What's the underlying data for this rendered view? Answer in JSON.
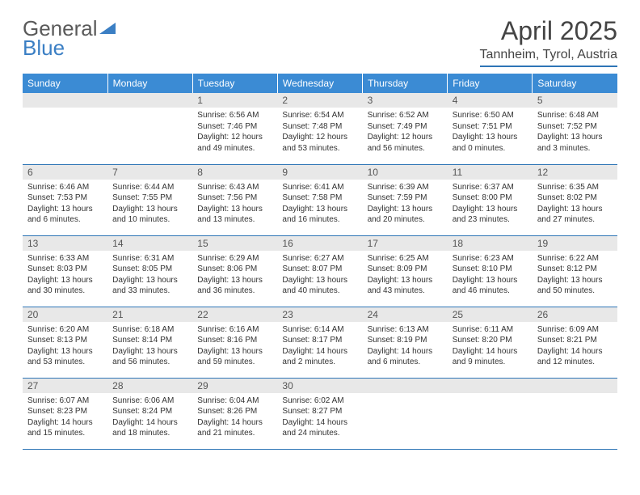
{
  "logo": {
    "text_gray": "General",
    "text_blue": "Blue"
  },
  "title": "April 2025",
  "location": "Tannheim, Tyrol, Austria",
  "colors": {
    "header_bg": "#3b8bd4",
    "header_text": "#ffffff",
    "daynum_bg": "#e8e8e8",
    "border": "#2e75b6",
    "logo_gray": "#5a5a5a",
    "logo_blue": "#3b7fc4"
  },
  "weekdays": [
    "Sunday",
    "Monday",
    "Tuesday",
    "Wednesday",
    "Thursday",
    "Friday",
    "Saturday"
  ],
  "weeks": [
    [
      {
        "empty": true
      },
      {
        "empty": true
      },
      {
        "num": "1",
        "sunrise": "Sunrise: 6:56 AM",
        "sunset": "Sunset: 7:46 PM",
        "daylight": "Daylight: 12 hours and 49 minutes."
      },
      {
        "num": "2",
        "sunrise": "Sunrise: 6:54 AM",
        "sunset": "Sunset: 7:48 PM",
        "daylight": "Daylight: 12 hours and 53 minutes."
      },
      {
        "num": "3",
        "sunrise": "Sunrise: 6:52 AM",
        "sunset": "Sunset: 7:49 PM",
        "daylight": "Daylight: 12 hours and 56 minutes."
      },
      {
        "num": "4",
        "sunrise": "Sunrise: 6:50 AM",
        "sunset": "Sunset: 7:51 PM",
        "daylight": "Daylight: 13 hours and 0 minutes."
      },
      {
        "num": "5",
        "sunrise": "Sunrise: 6:48 AM",
        "sunset": "Sunset: 7:52 PM",
        "daylight": "Daylight: 13 hours and 3 minutes."
      }
    ],
    [
      {
        "num": "6",
        "sunrise": "Sunrise: 6:46 AM",
        "sunset": "Sunset: 7:53 PM",
        "daylight": "Daylight: 13 hours and 6 minutes."
      },
      {
        "num": "7",
        "sunrise": "Sunrise: 6:44 AM",
        "sunset": "Sunset: 7:55 PM",
        "daylight": "Daylight: 13 hours and 10 minutes."
      },
      {
        "num": "8",
        "sunrise": "Sunrise: 6:43 AM",
        "sunset": "Sunset: 7:56 PM",
        "daylight": "Daylight: 13 hours and 13 minutes."
      },
      {
        "num": "9",
        "sunrise": "Sunrise: 6:41 AM",
        "sunset": "Sunset: 7:58 PM",
        "daylight": "Daylight: 13 hours and 16 minutes."
      },
      {
        "num": "10",
        "sunrise": "Sunrise: 6:39 AM",
        "sunset": "Sunset: 7:59 PM",
        "daylight": "Daylight: 13 hours and 20 minutes."
      },
      {
        "num": "11",
        "sunrise": "Sunrise: 6:37 AM",
        "sunset": "Sunset: 8:00 PM",
        "daylight": "Daylight: 13 hours and 23 minutes."
      },
      {
        "num": "12",
        "sunrise": "Sunrise: 6:35 AM",
        "sunset": "Sunset: 8:02 PM",
        "daylight": "Daylight: 13 hours and 27 minutes."
      }
    ],
    [
      {
        "num": "13",
        "sunrise": "Sunrise: 6:33 AM",
        "sunset": "Sunset: 8:03 PM",
        "daylight": "Daylight: 13 hours and 30 minutes."
      },
      {
        "num": "14",
        "sunrise": "Sunrise: 6:31 AM",
        "sunset": "Sunset: 8:05 PM",
        "daylight": "Daylight: 13 hours and 33 minutes."
      },
      {
        "num": "15",
        "sunrise": "Sunrise: 6:29 AM",
        "sunset": "Sunset: 8:06 PM",
        "daylight": "Daylight: 13 hours and 36 minutes."
      },
      {
        "num": "16",
        "sunrise": "Sunrise: 6:27 AM",
        "sunset": "Sunset: 8:07 PM",
        "daylight": "Daylight: 13 hours and 40 minutes."
      },
      {
        "num": "17",
        "sunrise": "Sunrise: 6:25 AM",
        "sunset": "Sunset: 8:09 PM",
        "daylight": "Daylight: 13 hours and 43 minutes."
      },
      {
        "num": "18",
        "sunrise": "Sunrise: 6:23 AM",
        "sunset": "Sunset: 8:10 PM",
        "daylight": "Daylight: 13 hours and 46 minutes."
      },
      {
        "num": "19",
        "sunrise": "Sunrise: 6:22 AM",
        "sunset": "Sunset: 8:12 PM",
        "daylight": "Daylight: 13 hours and 50 minutes."
      }
    ],
    [
      {
        "num": "20",
        "sunrise": "Sunrise: 6:20 AM",
        "sunset": "Sunset: 8:13 PM",
        "daylight": "Daylight: 13 hours and 53 minutes."
      },
      {
        "num": "21",
        "sunrise": "Sunrise: 6:18 AM",
        "sunset": "Sunset: 8:14 PM",
        "daylight": "Daylight: 13 hours and 56 minutes."
      },
      {
        "num": "22",
        "sunrise": "Sunrise: 6:16 AM",
        "sunset": "Sunset: 8:16 PM",
        "daylight": "Daylight: 13 hours and 59 minutes."
      },
      {
        "num": "23",
        "sunrise": "Sunrise: 6:14 AM",
        "sunset": "Sunset: 8:17 PM",
        "daylight": "Daylight: 14 hours and 2 minutes."
      },
      {
        "num": "24",
        "sunrise": "Sunrise: 6:13 AM",
        "sunset": "Sunset: 8:19 PM",
        "daylight": "Daylight: 14 hours and 6 minutes."
      },
      {
        "num": "25",
        "sunrise": "Sunrise: 6:11 AM",
        "sunset": "Sunset: 8:20 PM",
        "daylight": "Daylight: 14 hours and 9 minutes."
      },
      {
        "num": "26",
        "sunrise": "Sunrise: 6:09 AM",
        "sunset": "Sunset: 8:21 PM",
        "daylight": "Daylight: 14 hours and 12 minutes."
      }
    ],
    [
      {
        "num": "27",
        "sunrise": "Sunrise: 6:07 AM",
        "sunset": "Sunset: 8:23 PM",
        "daylight": "Daylight: 14 hours and 15 minutes."
      },
      {
        "num": "28",
        "sunrise": "Sunrise: 6:06 AM",
        "sunset": "Sunset: 8:24 PM",
        "daylight": "Daylight: 14 hours and 18 minutes."
      },
      {
        "num": "29",
        "sunrise": "Sunrise: 6:04 AM",
        "sunset": "Sunset: 8:26 PM",
        "daylight": "Daylight: 14 hours and 21 minutes."
      },
      {
        "num": "30",
        "sunrise": "Sunrise: 6:02 AM",
        "sunset": "Sunset: 8:27 PM",
        "daylight": "Daylight: 14 hours and 24 minutes."
      },
      {
        "empty": true
      },
      {
        "empty": true
      },
      {
        "empty": true
      }
    ]
  ]
}
